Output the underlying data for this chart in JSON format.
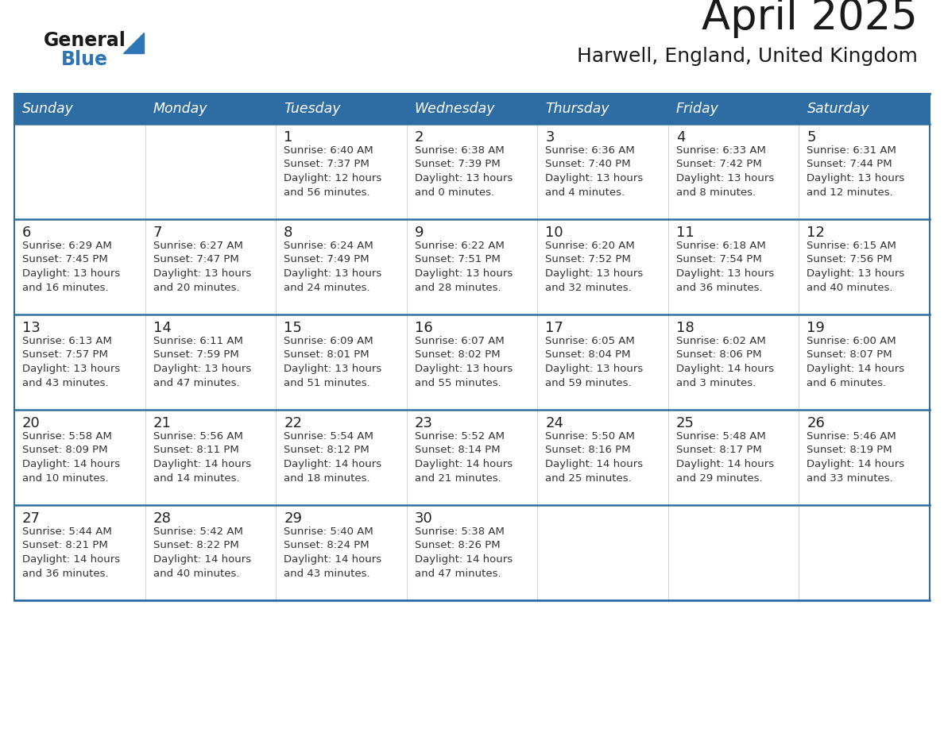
{
  "title": "April 2025",
  "subtitle": "Harwell, England, United Kingdom",
  "days_of_week": [
    "Sunday",
    "Monday",
    "Tuesday",
    "Wednesday",
    "Thursday",
    "Friday",
    "Saturday"
  ],
  "header_bg": "#2E6DA4",
  "header_text": "#FFFFFF",
  "row_bg": "#FFFFFF",
  "row_divider_color": "#2E6DA4",
  "cell_border_color": "#CCCCCC",
  "day_number_color": "#222222",
  "text_color": "#333333",
  "title_color": "#1a1a1a",
  "logo_general_color": "#1a1a1a",
  "logo_blue_color": "#2E75B6",
  "calendar_data": [
    [
      null,
      null,
      {
        "day": 1,
        "sunrise": "6:40 AM",
        "sunset": "7:37 PM",
        "daylight": "12 hours\nand 56 minutes."
      },
      {
        "day": 2,
        "sunrise": "6:38 AM",
        "sunset": "7:39 PM",
        "daylight": "13 hours\nand 0 minutes."
      },
      {
        "day": 3,
        "sunrise": "6:36 AM",
        "sunset": "7:40 PM",
        "daylight": "13 hours\nand 4 minutes."
      },
      {
        "day": 4,
        "sunrise": "6:33 AM",
        "sunset": "7:42 PM",
        "daylight": "13 hours\nand 8 minutes."
      },
      {
        "day": 5,
        "sunrise": "6:31 AM",
        "sunset": "7:44 PM",
        "daylight": "13 hours\nand 12 minutes."
      }
    ],
    [
      {
        "day": 6,
        "sunrise": "6:29 AM",
        "sunset": "7:45 PM",
        "daylight": "13 hours\nand 16 minutes."
      },
      {
        "day": 7,
        "sunrise": "6:27 AM",
        "sunset": "7:47 PM",
        "daylight": "13 hours\nand 20 minutes."
      },
      {
        "day": 8,
        "sunrise": "6:24 AM",
        "sunset": "7:49 PM",
        "daylight": "13 hours\nand 24 minutes."
      },
      {
        "day": 9,
        "sunrise": "6:22 AM",
        "sunset": "7:51 PM",
        "daylight": "13 hours\nand 28 minutes."
      },
      {
        "day": 10,
        "sunrise": "6:20 AM",
        "sunset": "7:52 PM",
        "daylight": "13 hours\nand 32 minutes."
      },
      {
        "day": 11,
        "sunrise": "6:18 AM",
        "sunset": "7:54 PM",
        "daylight": "13 hours\nand 36 minutes."
      },
      {
        "day": 12,
        "sunrise": "6:15 AM",
        "sunset": "7:56 PM",
        "daylight": "13 hours\nand 40 minutes."
      }
    ],
    [
      {
        "day": 13,
        "sunrise": "6:13 AM",
        "sunset": "7:57 PM",
        "daylight": "13 hours\nand 43 minutes."
      },
      {
        "day": 14,
        "sunrise": "6:11 AM",
        "sunset": "7:59 PM",
        "daylight": "13 hours\nand 47 minutes."
      },
      {
        "day": 15,
        "sunrise": "6:09 AM",
        "sunset": "8:01 PM",
        "daylight": "13 hours\nand 51 minutes."
      },
      {
        "day": 16,
        "sunrise": "6:07 AM",
        "sunset": "8:02 PM",
        "daylight": "13 hours\nand 55 minutes."
      },
      {
        "day": 17,
        "sunrise": "6:05 AM",
        "sunset": "8:04 PM",
        "daylight": "13 hours\nand 59 minutes."
      },
      {
        "day": 18,
        "sunrise": "6:02 AM",
        "sunset": "8:06 PM",
        "daylight": "14 hours\nand 3 minutes."
      },
      {
        "day": 19,
        "sunrise": "6:00 AM",
        "sunset": "8:07 PM",
        "daylight": "14 hours\nand 6 minutes."
      }
    ],
    [
      {
        "day": 20,
        "sunrise": "5:58 AM",
        "sunset": "8:09 PM",
        "daylight": "14 hours\nand 10 minutes."
      },
      {
        "day": 21,
        "sunrise": "5:56 AM",
        "sunset": "8:11 PM",
        "daylight": "14 hours\nand 14 minutes."
      },
      {
        "day": 22,
        "sunrise": "5:54 AM",
        "sunset": "8:12 PM",
        "daylight": "14 hours\nand 18 minutes."
      },
      {
        "day": 23,
        "sunrise": "5:52 AM",
        "sunset": "8:14 PM",
        "daylight": "14 hours\nand 21 minutes."
      },
      {
        "day": 24,
        "sunrise": "5:50 AM",
        "sunset": "8:16 PM",
        "daylight": "14 hours\nand 25 minutes."
      },
      {
        "day": 25,
        "sunrise": "5:48 AM",
        "sunset": "8:17 PM",
        "daylight": "14 hours\nand 29 minutes."
      },
      {
        "day": 26,
        "sunrise": "5:46 AM",
        "sunset": "8:19 PM",
        "daylight": "14 hours\nand 33 minutes."
      }
    ],
    [
      {
        "day": 27,
        "sunrise": "5:44 AM",
        "sunset": "8:21 PM",
        "daylight": "14 hours\nand 36 minutes."
      },
      {
        "day": 28,
        "sunrise": "5:42 AM",
        "sunset": "8:22 PM",
        "daylight": "14 hours\nand 40 minutes."
      },
      {
        "day": 29,
        "sunrise": "5:40 AM",
        "sunset": "8:24 PM",
        "daylight": "14 hours\nand 43 minutes."
      },
      {
        "day": 30,
        "sunrise": "5:38 AM",
        "sunset": "8:26 PM",
        "daylight": "14 hours\nand 47 minutes."
      },
      null,
      null,
      null
    ]
  ]
}
